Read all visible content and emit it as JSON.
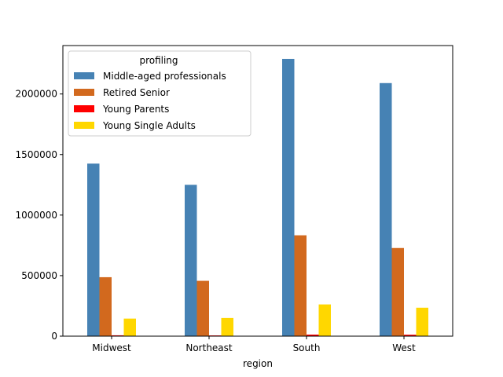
{
  "chart_data": {
    "type": "bar",
    "title": "",
    "xlabel": "region",
    "ylabel": "",
    "categories": [
      "Midwest",
      "Northeast",
      "South",
      "West"
    ],
    "ylim": [
      0,
      2400000
    ],
    "yticks": [
      0,
      500000,
      1000000,
      1500000,
      2000000
    ],
    "ytick_labels": [
      "0",
      "500000",
      "1000000",
      "1500000",
      "2000000"
    ],
    "grid": false,
    "legend": {
      "title": "profiling",
      "placement": "top-left"
    },
    "series": [
      {
        "name": "Middle-aged professionals",
        "color": "#4682b4",
        "values": [
          1425000,
          1250000,
          2290000,
          2090000
        ]
      },
      {
        "name": "Retired Senior",
        "color": "#d2691e",
        "values": [
          487000,
          457000,
          833000,
          728000
        ]
      },
      {
        "name": "Young Parents",
        "color": "#ff0000",
        "values": [
          7000,
          6000,
          13000,
          12000
        ]
      },
      {
        "name": "Young Single Adults",
        "color": "#ffd700",
        "values": [
          145000,
          150000,
          262000,
          235000
        ]
      }
    ]
  }
}
